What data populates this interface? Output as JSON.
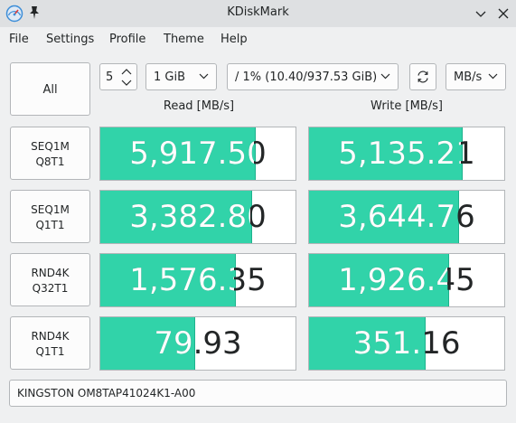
{
  "window": {
    "title": "KDiskMark"
  },
  "menu": {
    "items": [
      "File",
      "Settings",
      "Profile",
      "Theme",
      "Help"
    ]
  },
  "toolbar": {
    "all_label": "All",
    "count": "5",
    "size": "1 GiB",
    "drive": "/ 1% (10.40/937.53 GiB)",
    "unit": "MB/s"
  },
  "headers": {
    "read": "Read [MB/s]",
    "write": "Write [MB/s]"
  },
  "tests": [
    {
      "line1": "SEQ1M",
      "line2": "Q8T1",
      "read": "5,917.50",
      "write": "5,135.21",
      "read_fill": 0.79,
      "write_fill": 0.78
    },
    {
      "line1": "SEQ1M",
      "line2": "Q1T1",
      "read": "3,382.80",
      "write": "3,644.76",
      "read_fill": 0.77,
      "write_fill": 0.76
    },
    {
      "line1": "RND4K",
      "line2": "Q32T1",
      "read": "1,576.35",
      "write": "1,926.45",
      "read_fill": 0.69,
      "write_fill": 0.71
    },
    {
      "line1": "RND4K",
      "line2": "Q1T1",
      "read": "79.93",
      "write": "351.16",
      "read_fill": 0.48,
      "write_fill": 0.59
    }
  ],
  "device": {
    "name": "KINGSTON OM8TAP41024K1-A00"
  },
  "colors": {
    "bar_fill": "#31d3a9",
    "bar_background": "#ffffff",
    "titlebar": "#dee0e2",
    "window": "#eff0f1"
  }
}
